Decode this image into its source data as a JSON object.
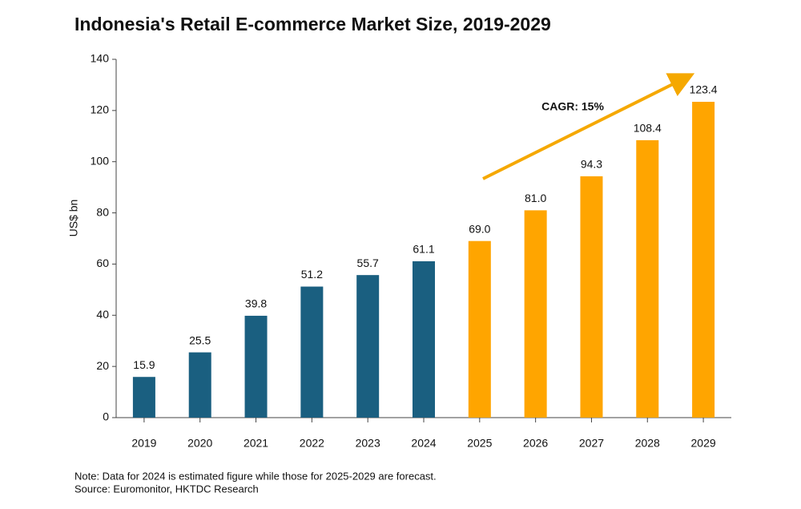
{
  "chart_data": {
    "type": "bar",
    "title": "Indonesia's Retail E-commerce Market Size, 2019-2029",
    "y_label": "US$ bn",
    "categories": [
      "2019",
      "2020",
      "2021",
      "2022",
      "2023",
      "2024",
      "2025",
      "2026",
      "2027",
      "2028",
      "2029"
    ],
    "values": [
      15.9,
      25.5,
      39.8,
      51.2,
      55.7,
      61.1,
      69.0,
      81.0,
      94.3,
      108.4,
      123.4
    ],
    "value_labels": [
      "15.9",
      "25.5",
      "39.8",
      "51.2",
      "55.7",
      "61.1",
      "69.0",
      "81.0",
      "94.3",
      "108.4",
      "123.4"
    ],
    "colors": [
      "#1a5f80",
      "#1a5f80",
      "#1a5f80",
      "#1a5f80",
      "#1a5f80",
      "#1a5f80",
      "#ffa500",
      "#ffa500",
      "#ffa500",
      "#ffa500",
      "#ffa500"
    ],
    "ylim": [
      0,
      140
    ],
    "yticks": [
      0,
      20,
      40,
      60,
      80,
      100,
      120,
      140
    ],
    "grid": false,
    "annotation": "CAGR: 15%",
    "note": "Note: Data for 2024 is estimated figure while those for 2025-2029 are forecast.",
    "source": "Source: Euromonitor, HKTDC Research"
  }
}
